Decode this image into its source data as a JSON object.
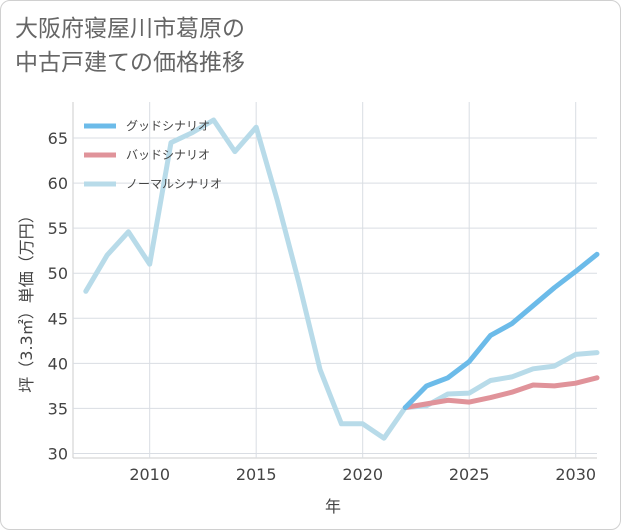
{
  "title_line1": "大阪府寝屋川市葛原の",
  "title_line2": "中古戸建ての価格推移",
  "chart_data": {
    "type": "line",
    "xlabel": "年",
    "ylabel": "坪（3.3㎡）単価（万円）",
    "xlim": [
      2006.4,
      2031
    ],
    "ylim": [
      29.5,
      69
    ],
    "x_ticks": [
      2010,
      2015,
      2020,
      2025,
      2030
    ],
    "y_ticks": [
      30,
      35,
      40,
      45,
      50,
      55,
      60,
      65
    ],
    "grid": true,
    "legend_position": "top-left",
    "series": [
      {
        "name": "グッドシナリオ",
        "color": "#6cbbe9",
        "x": [
          2022,
          2023,
          2024,
          2025,
          2026,
          2027,
          2028,
          2029,
          2030,
          2031
        ],
        "y": [
          35.1,
          37.5,
          38.4,
          40.2,
          43.1,
          44.4,
          46.4,
          48.4,
          50.2,
          52.1
        ]
      },
      {
        "name": "バッドシナリオ",
        "color": "#e0939a",
        "x": [
          2022,
          2023,
          2024,
          2025,
          2026,
          2027,
          2028,
          2029,
          2030,
          2031
        ],
        "y": [
          35.1,
          35.5,
          35.9,
          35.7,
          36.2,
          36.8,
          37.6,
          37.5,
          37.8,
          38.4
        ]
      },
      {
        "name": "ノーマルシナリオ",
        "color": "#b8dbe9",
        "x": [
          2007,
          2008,
          2009,
          2010,
          2011,
          2012,
          2013,
          2014,
          2015,
          2016,
          2017,
          2018,
          2019,
          2020,
          2021,
          2022,
          2023,
          2024,
          2025,
          2026,
          2027,
          2028,
          2029,
          2030,
          2031
        ],
        "y": [
          48.0,
          52.0,
          54.6,
          51.0,
          64.5,
          65.6,
          67.0,
          63.5,
          66.2,
          58.0,
          49.0,
          39.3,
          33.3,
          33.3,
          31.7,
          35.1,
          35.3,
          36.6,
          36.7,
          38.1,
          38.5,
          39.4,
          39.7,
          41.0,
          41.2
        ]
      }
    ]
  }
}
